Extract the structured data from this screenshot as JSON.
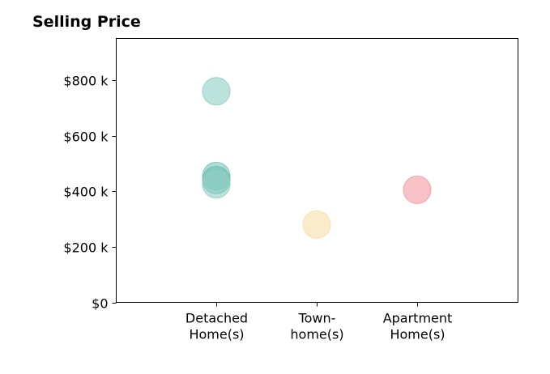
{
  "chart_data": {
    "type": "scatter",
    "title": "Selling Price",
    "xlabel": "",
    "ylabel": "",
    "categories": [
      [
        "Detached",
        "Home(s)"
      ],
      [
        "Town-",
        "home(s)"
      ],
      [
        "Apartment",
        "Home(s)"
      ]
    ],
    "ylim": [
      0,
      950
    ],
    "y_ticks": [
      0,
      200,
      400,
      600,
      800
    ],
    "y_tick_labels": [
      "$0",
      "$200 k",
      "$400 k",
      "$600 k",
      "$800 k"
    ],
    "grid": false,
    "legend": "none",
    "points": [
      {
        "category": 0,
        "y": 760,
        "color": "#8fcfc4"
      },
      {
        "category": 0,
        "y": 455,
        "color": "#7cc4b7"
      },
      {
        "category": 0,
        "y": 440,
        "color": "#6dbdaf"
      },
      {
        "category": 0,
        "y": 425,
        "color": "#8fcfc4"
      },
      {
        "category": 1,
        "y": 280,
        "color": "#f6dfa8"
      },
      {
        "category": 2,
        "y": 405,
        "color": "#f49aa0"
      }
    ]
  }
}
